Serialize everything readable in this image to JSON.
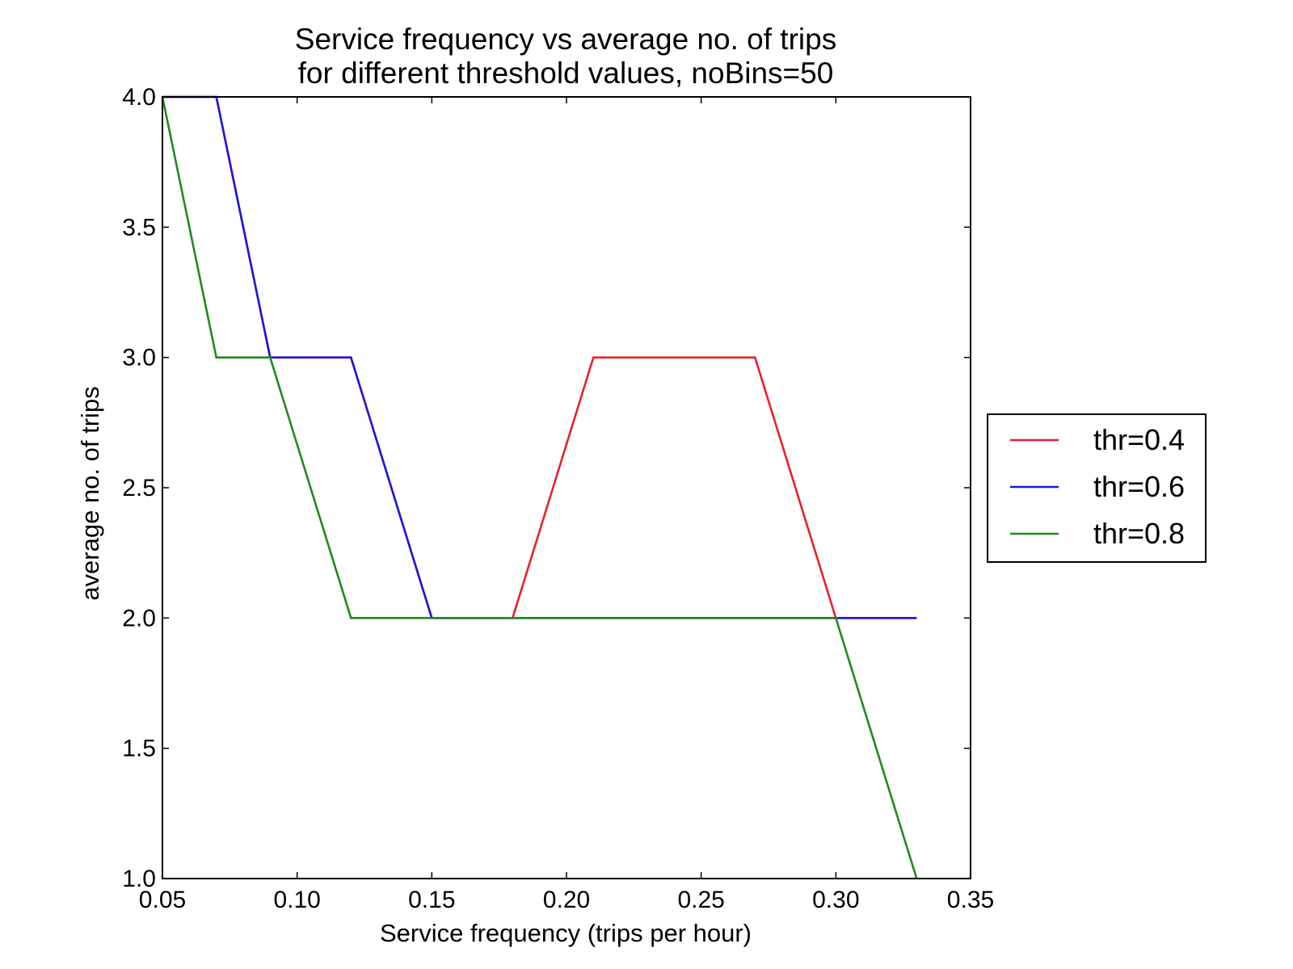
{
  "chart_data": {
    "type": "line",
    "title": "Service frequency vs average no. of trips",
    "subtitle": "for different threshold values, noBins=50",
    "xlabel": "Service frequency (trips per hour)",
    "ylabel": "average no. of trips",
    "xlim": [
      0.05,
      0.35
    ],
    "ylim": [
      1.0,
      4.0
    ],
    "x_ticks": [
      0.05,
      0.1,
      0.15,
      0.2,
      0.25,
      0.3,
      0.35
    ],
    "x_tick_labels": [
      "0.05",
      "0.10",
      "0.15",
      "0.20",
      "0.25",
      "0.30",
      "0.35"
    ],
    "y_ticks": [
      1.0,
      1.5,
      2.0,
      2.5,
      3.0,
      3.5,
      4.0
    ],
    "y_tick_labels": [
      "1.0",
      "1.5",
      "2.0",
      "2.5",
      "3.0",
      "3.5",
      "4.0"
    ],
    "grid": false,
    "legend_position": "right, outside plot",
    "series": [
      {
        "name": "thr=0.4",
        "color": "#e8202a",
        "x": [
          0.05,
          0.07,
          0.09,
          0.12,
          0.15,
          0.18,
          0.21,
          0.24,
          0.27,
          0.3,
          0.33
        ],
        "y": [
          4,
          4,
          3,
          3,
          2,
          2,
          3,
          3,
          3,
          2,
          2
        ]
      },
      {
        "name": "thr=0.6",
        "color": "#1a1ad8",
        "x": [
          0.05,
          0.07,
          0.09,
          0.12,
          0.15,
          0.18,
          0.21,
          0.24,
          0.27,
          0.3,
          0.33
        ],
        "y": [
          4,
          4,
          3,
          3,
          2,
          2,
          2,
          2,
          2,
          2,
          2
        ]
      },
      {
        "name": "thr=0.8",
        "color": "#1e8a1e",
        "x": [
          0.05,
          0.07,
          0.09,
          0.12,
          0.15,
          0.18,
          0.21,
          0.24,
          0.27,
          0.3,
          0.33
        ],
        "y": [
          4,
          3,
          3,
          2,
          2,
          2,
          2,
          2,
          2,
          2,
          1
        ]
      }
    ]
  }
}
